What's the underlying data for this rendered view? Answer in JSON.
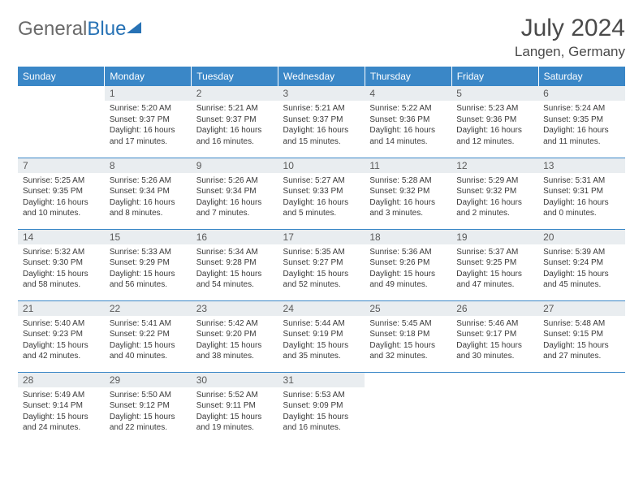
{
  "logo": {
    "text1": "General",
    "text2": "Blue"
  },
  "title": "July 2024",
  "location": "Langen, Germany",
  "header_bg": "#3a87c7",
  "header_fg": "#ffffff",
  "daynum_bg": "#e9edf0",
  "row_border": "#3a87c7",
  "days_of_week": [
    "Sunday",
    "Monday",
    "Tuesday",
    "Wednesday",
    "Thursday",
    "Friday",
    "Saturday"
  ],
  "weeks": [
    [
      null,
      {
        "n": "1",
        "sunrise": "5:20 AM",
        "sunset": "9:37 PM",
        "dl": "16 hours and 17 minutes."
      },
      {
        "n": "2",
        "sunrise": "5:21 AM",
        "sunset": "9:37 PM",
        "dl": "16 hours and 16 minutes."
      },
      {
        "n": "3",
        "sunrise": "5:21 AM",
        "sunset": "9:37 PM",
        "dl": "16 hours and 15 minutes."
      },
      {
        "n": "4",
        "sunrise": "5:22 AM",
        "sunset": "9:36 PM",
        "dl": "16 hours and 14 minutes."
      },
      {
        "n": "5",
        "sunrise": "5:23 AM",
        "sunset": "9:36 PM",
        "dl": "16 hours and 12 minutes."
      },
      {
        "n": "6",
        "sunrise": "5:24 AM",
        "sunset": "9:35 PM",
        "dl": "16 hours and 11 minutes."
      }
    ],
    [
      {
        "n": "7",
        "sunrise": "5:25 AM",
        "sunset": "9:35 PM",
        "dl": "16 hours and 10 minutes."
      },
      {
        "n": "8",
        "sunrise": "5:26 AM",
        "sunset": "9:34 PM",
        "dl": "16 hours and 8 minutes."
      },
      {
        "n": "9",
        "sunrise": "5:26 AM",
        "sunset": "9:34 PM",
        "dl": "16 hours and 7 minutes."
      },
      {
        "n": "10",
        "sunrise": "5:27 AM",
        "sunset": "9:33 PM",
        "dl": "16 hours and 5 minutes."
      },
      {
        "n": "11",
        "sunrise": "5:28 AM",
        "sunset": "9:32 PM",
        "dl": "16 hours and 3 minutes."
      },
      {
        "n": "12",
        "sunrise": "5:29 AM",
        "sunset": "9:32 PM",
        "dl": "16 hours and 2 minutes."
      },
      {
        "n": "13",
        "sunrise": "5:31 AM",
        "sunset": "9:31 PM",
        "dl": "16 hours and 0 minutes."
      }
    ],
    [
      {
        "n": "14",
        "sunrise": "5:32 AM",
        "sunset": "9:30 PM",
        "dl": "15 hours and 58 minutes."
      },
      {
        "n": "15",
        "sunrise": "5:33 AM",
        "sunset": "9:29 PM",
        "dl": "15 hours and 56 minutes."
      },
      {
        "n": "16",
        "sunrise": "5:34 AM",
        "sunset": "9:28 PM",
        "dl": "15 hours and 54 minutes."
      },
      {
        "n": "17",
        "sunrise": "5:35 AM",
        "sunset": "9:27 PM",
        "dl": "15 hours and 52 minutes."
      },
      {
        "n": "18",
        "sunrise": "5:36 AM",
        "sunset": "9:26 PM",
        "dl": "15 hours and 49 minutes."
      },
      {
        "n": "19",
        "sunrise": "5:37 AM",
        "sunset": "9:25 PM",
        "dl": "15 hours and 47 minutes."
      },
      {
        "n": "20",
        "sunrise": "5:39 AM",
        "sunset": "9:24 PM",
        "dl": "15 hours and 45 minutes."
      }
    ],
    [
      {
        "n": "21",
        "sunrise": "5:40 AM",
        "sunset": "9:23 PM",
        "dl": "15 hours and 42 minutes."
      },
      {
        "n": "22",
        "sunrise": "5:41 AM",
        "sunset": "9:22 PM",
        "dl": "15 hours and 40 minutes."
      },
      {
        "n": "23",
        "sunrise": "5:42 AM",
        "sunset": "9:20 PM",
        "dl": "15 hours and 38 minutes."
      },
      {
        "n": "24",
        "sunrise": "5:44 AM",
        "sunset": "9:19 PM",
        "dl": "15 hours and 35 minutes."
      },
      {
        "n": "25",
        "sunrise": "5:45 AM",
        "sunset": "9:18 PM",
        "dl": "15 hours and 32 minutes."
      },
      {
        "n": "26",
        "sunrise": "5:46 AM",
        "sunset": "9:17 PM",
        "dl": "15 hours and 30 minutes."
      },
      {
        "n": "27",
        "sunrise": "5:48 AM",
        "sunset": "9:15 PM",
        "dl": "15 hours and 27 minutes."
      }
    ],
    [
      {
        "n": "28",
        "sunrise": "5:49 AM",
        "sunset": "9:14 PM",
        "dl": "15 hours and 24 minutes."
      },
      {
        "n": "29",
        "sunrise": "5:50 AM",
        "sunset": "9:12 PM",
        "dl": "15 hours and 22 minutes."
      },
      {
        "n": "30",
        "sunrise": "5:52 AM",
        "sunset": "9:11 PM",
        "dl": "15 hours and 19 minutes."
      },
      {
        "n": "31",
        "sunrise": "5:53 AM",
        "sunset": "9:09 PM",
        "dl": "15 hours and 16 minutes."
      },
      null,
      null,
      null
    ]
  ],
  "labels": {
    "sunrise": "Sunrise: ",
    "sunset": "Sunset: ",
    "daylight": "Daylight: "
  }
}
